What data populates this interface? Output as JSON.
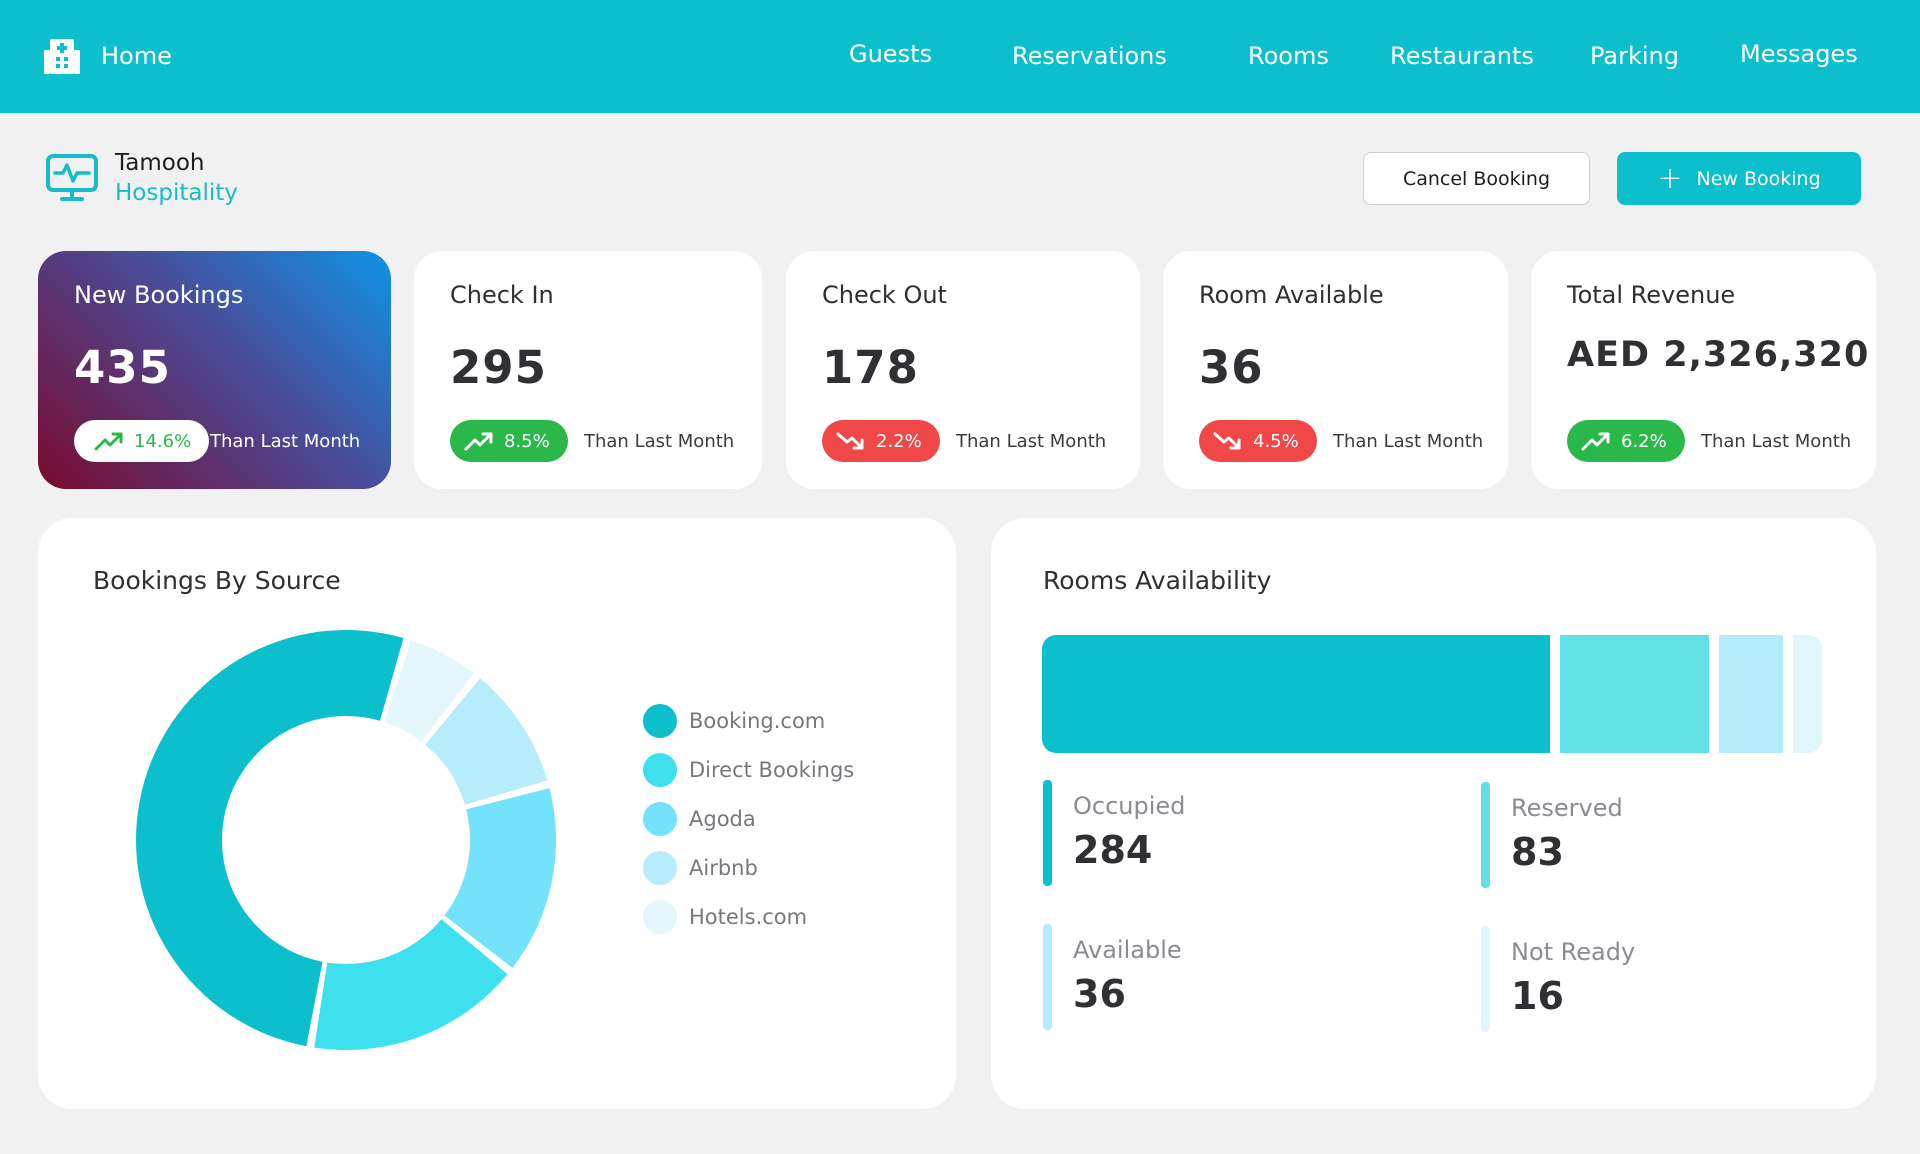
{
  "nav": {
    "home": "Home",
    "items": [
      "Guests",
      "Reservations",
      "Rooms",
      "Restaurants",
      "Parking",
      "Messages"
    ]
  },
  "brand": {
    "line1": "Tamooh",
    "line2": "Hospitality"
  },
  "actions": {
    "cancel": "Cancel Booking",
    "new": "New Booking"
  },
  "cards": [
    {
      "title": "New Bookings",
      "value": "435",
      "change": "14.6%",
      "trend": "up",
      "note": "Than Last Month"
    },
    {
      "title": "Check In",
      "value": "295",
      "change": "8.5%",
      "trend": "up",
      "note": "Than Last Month"
    },
    {
      "title": "Check Out",
      "value": "178",
      "change": "2.2%",
      "trend": "down",
      "note": "Than Last Month"
    },
    {
      "title": "Room Available",
      "value": "36",
      "change": "4.5%",
      "trend": "down",
      "note": "Than Last Month"
    },
    {
      "title": "Total Revenue",
      "value": "AED 2,326,320",
      "change": "6.2%",
      "trend": "up",
      "note": "Than Last Month"
    }
  ],
  "source_panel": {
    "title": "Bookings By Source",
    "legend": [
      "Booking.com",
      "Direct Bookings",
      "Agoda",
      "Airbnb",
      "Hotels.com"
    ]
  },
  "rooms_panel": {
    "title": "Rooms Availability",
    "stats": [
      {
        "label": "Occupied",
        "value": "284"
      },
      {
        "label": "Reserved",
        "value": "83"
      },
      {
        "label": "Available",
        "value": "36"
      },
      {
        "label": "Not Ready",
        "value": "16"
      }
    ]
  },
  "colors": {
    "accent": "#0cbfcc",
    "up": "#2ab84a",
    "down": "#f04848",
    "source_palette": [
      "#0cbfcc",
      "#3fe0ed",
      "#75e2fb",
      "#b7ecfb",
      "#e4f7fd"
    ],
    "rooms_palette": [
      "#0cbfcc",
      "#62e0e8",
      "#b2ecfb",
      "#e0f6fd"
    ]
  },
  "chart_data": [
    {
      "type": "pie",
      "title": "Bookings By Source",
      "categories": [
        "Booking.com",
        "Direct Bookings",
        "Agoda",
        "Airbnb",
        "Hotels.com"
      ],
      "values": [
        52,
        17,
        15,
        10,
        6
      ]
    },
    {
      "type": "bar",
      "title": "Rooms Availability",
      "categories": [
        "Occupied",
        "Reserved",
        "Available",
        "Not Ready"
      ],
      "values": [
        284,
        83,
        36,
        16
      ]
    }
  ]
}
